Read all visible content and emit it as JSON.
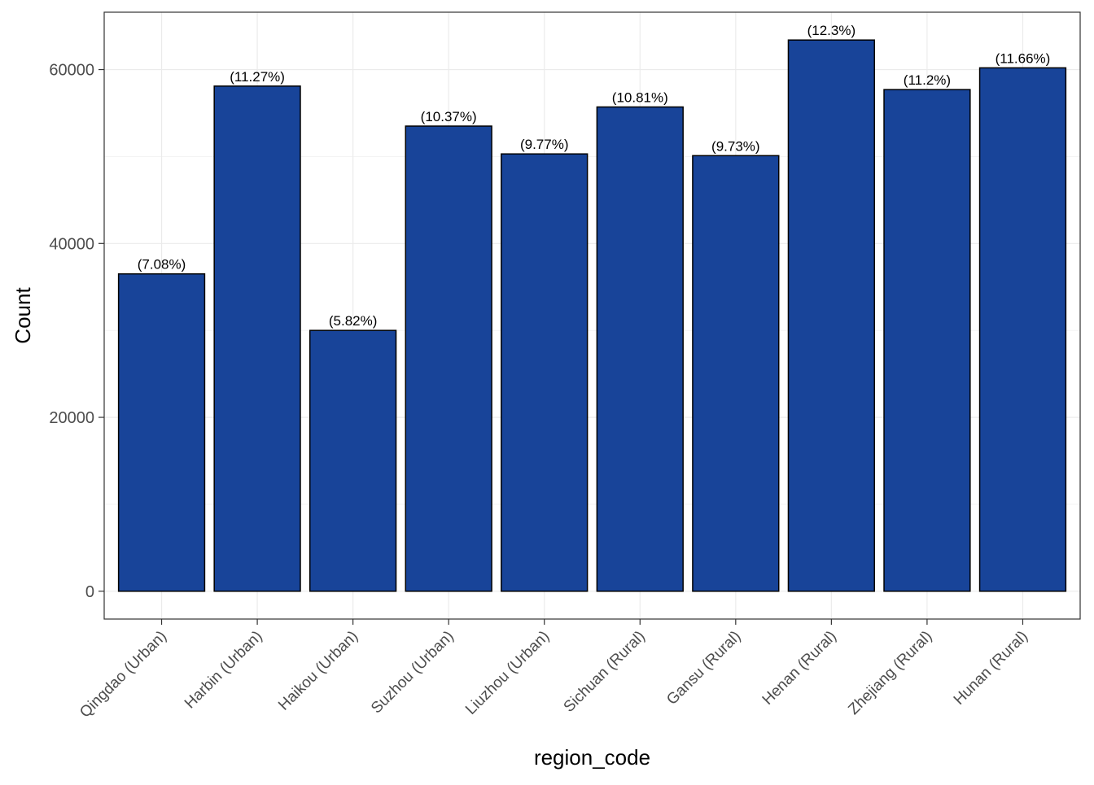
{
  "chart_data": {
    "type": "bar",
    "title": "",
    "xlabel": "region_code",
    "ylabel": "Count",
    "categories": [
      "Qingdao (Urban)",
      "Harbin (Urban)",
      "Haikou (Urban)",
      "Suzhou (Urban)",
      "Liuzhou (Urban)",
      "Sichuan (Rural)",
      "Gansu (Rural)",
      "Henan (Rural)",
      "Zhejiang (Rural)",
      "Hunan (Rural)"
    ],
    "values": [
      36500,
      58100,
      30000,
      53500,
      50300,
      55700,
      50100,
      63400,
      57700,
      60200
    ],
    "labels": [
      "(7.08%)",
      "(11.27%)",
      "(5.82%)",
      "(10.37%)",
      "(9.77%)",
      "(10.81%)",
      "(9.73%)",
      "(12.3%)",
      "(11.2%)",
      "(11.66%)"
    ],
    "ylim": [
      -3200,
      66600
    ],
    "yticks": [
      0,
      20000,
      40000,
      60000
    ],
    "ytick_labels": [
      "0",
      "20000",
      "40000",
      "60000"
    ],
    "grid": true,
    "bar_fill": "#184499",
    "bar_stroke": "#000000"
  }
}
